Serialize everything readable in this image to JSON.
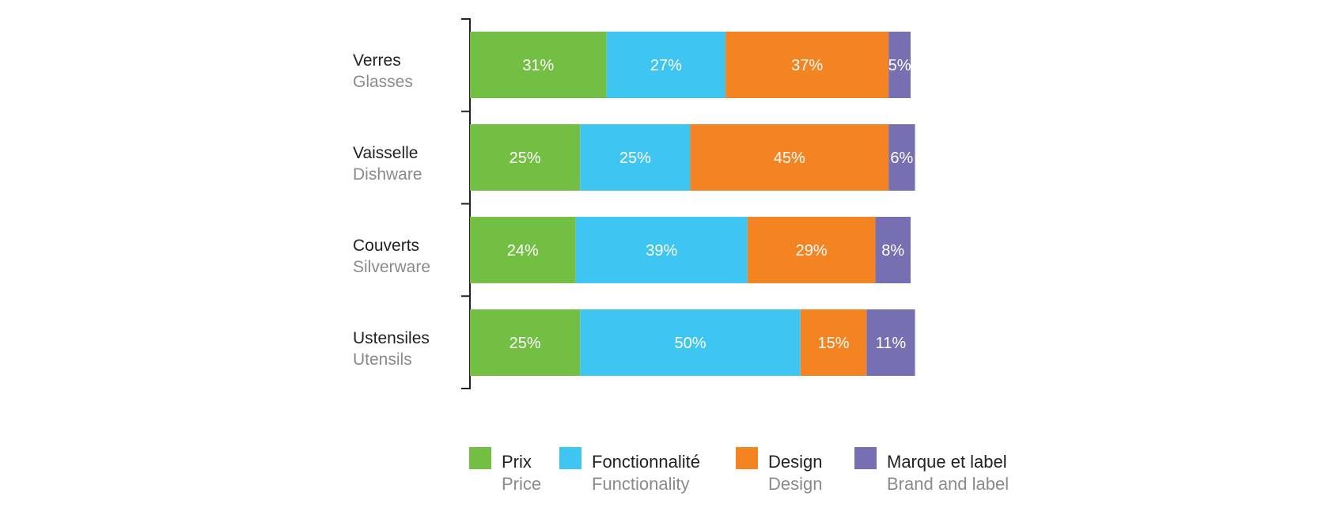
{
  "chart_data": {
    "type": "bar",
    "orientation": "horizontal",
    "stacked": true,
    "categories": [
      {
        "label": "Verres",
        "sublabel": "Glasses"
      },
      {
        "label": "Vaisselle",
        "sublabel": "Dishware"
      },
      {
        "label": "Couverts",
        "sublabel": "Silverware"
      },
      {
        "label": "Ustensiles",
        "sublabel": "Utensils"
      }
    ],
    "series": [
      {
        "name": "Prix",
        "subname": "Price",
        "color": "#72bf44",
        "values": [
          31,
          25,
          24,
          25
        ],
        "labels": [
          "31%",
          "25%",
          "24%",
          "25%"
        ]
      },
      {
        "name": "Fonctionnalité",
        "subname": "Functionality",
        "color": "#3ec5f1",
        "values": [
          27,
          25,
          39,
          50
        ],
        "labels": [
          "27%",
          "25%",
          "39%",
          "50%"
        ]
      },
      {
        "name": "Design",
        "subname": "Design",
        "color": "#f48421",
        "values": [
          37,
          45,
          29,
          15
        ],
        "labels": [
          "37%",
          "45%",
          "29%",
          "15%"
        ]
      },
      {
        "name": "Marque et label",
        "subname": "Brand and label",
        "color": "#7670b3",
        "values": [
          5,
          6,
          8,
          11
        ],
        "labels": [
          "5%",
          "6%",
          "8%",
          "11%"
        ]
      }
    ],
    "legend": "bottom",
    "grid": false
  }
}
